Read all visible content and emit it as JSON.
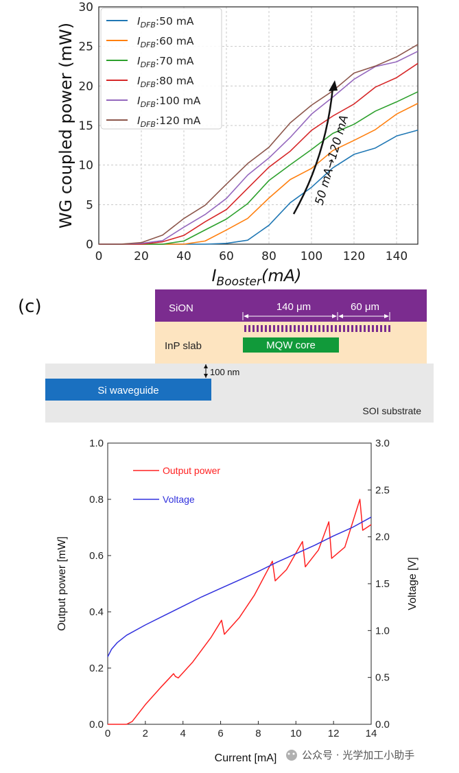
{
  "chart_data": [
    {
      "type": "line",
      "ylabel": "WG coupled power (mW)",
      "xlabel_main": "I",
      "xlabel_sub": "Booster",
      "xlabel_unit": "(mA)",
      "xlim": [
        0,
        150
      ],
      "ylim": [
        0,
        30
      ],
      "xticks": [
        "0",
        "20",
        "40",
        "60",
        "80",
        "100",
        "120",
        "140"
      ],
      "yticks": [
        "0",
        "5",
        "10",
        "15",
        "20",
        "25",
        "30"
      ],
      "grid": true,
      "legend_position": "top-left",
      "annotation": "50 mA→120 mA",
      "x": [
        0,
        10,
        20,
        30,
        40,
        50,
        60,
        70,
        80,
        90,
        100,
        110,
        120,
        130,
        140,
        150
      ],
      "series": [
        {
          "name": "50 mA",
          "legend_main": "I",
          "legend_sub": "DFB",
          "legend_value": ":50 mA",
          "color": "#1f77b4",
          "values": [
            0,
            0,
            0,
            0,
            0,
            0,
            0.1,
            0.6,
            2.5,
            5.0,
            7.4,
            9.6,
            11.2,
            12.4,
            13.5,
            14.4
          ]
        },
        {
          "name": "60 mA",
          "legend_main": "I",
          "legend_sub": "DFB",
          "legend_value": ":60 mA",
          "color": "#ff7f0e",
          "values": [
            0,
            0,
            0,
            0,
            0,
            0.4,
            1.6,
            3.5,
            5.7,
            8.1,
            9.8,
            11.6,
            13.2,
            14.6,
            16.2,
            18.0
          ]
        },
        {
          "name": "70 mA",
          "legend_main": "I",
          "legend_sub": "DFB",
          "legend_value": ":70 mA",
          "color": "#2ca02c",
          "values": [
            0,
            0,
            0,
            0,
            0.4,
            1.6,
            3.2,
            5.3,
            7.8,
            10.2,
            12.0,
            13.8,
            15.4,
            16.7,
            17.9,
            19.5
          ]
        },
        {
          "name": "80 mA",
          "legend_main": "I",
          "legend_sub": "DFB",
          "legend_value": ":80 mA",
          "color": "#d62728",
          "values": [
            0,
            0,
            0,
            0.3,
            1.2,
            2.6,
            4.6,
            7.0,
            9.6,
            12.0,
            14.2,
            16.2,
            17.9,
            19.6,
            21.2,
            22.9
          ]
        },
        {
          "name": "100 mA",
          "legend_main": "I",
          "legend_sub": "DFB",
          "legend_value": ":100 mA",
          "color": "#9467bd",
          "values": [
            0,
            0,
            0.1,
            0.7,
            2.0,
            3.7,
            6.0,
            8.5,
            11.0,
            13.6,
            16.2,
            18.8,
            20.8,
            22.3,
            23.3,
            24.2
          ]
        },
        {
          "name": "120 mA",
          "legend_main": "I",
          "legend_sub": "DFB",
          "legend_value": ":120 mA",
          "color": "#8c564b",
          "values": [
            0,
            0,
            0.2,
            1.3,
            3.0,
            5.1,
            7.6,
            10.0,
            12.5,
            15.2,
            17.5,
            19.6,
            21.4,
            22.6,
            23.8,
            25.0
          ]
        }
      ]
    },
    {
      "type": "line",
      "xlabel": "Current [mA]",
      "ylabel_left": "Output power [mW]",
      "ylabel_right": "Voltage [V]",
      "xlim": [
        0,
        14
      ],
      "ylim_left": [
        0,
        1.0
      ],
      "ylim_right": [
        0,
        3.0
      ],
      "xticks": [
        "0",
        "2",
        "4",
        "6",
        "8",
        "10",
        "12",
        "14"
      ],
      "yticks_left": [
        "0.0",
        "0.2",
        "0.4",
        "0.6",
        "0.8",
        "1.0"
      ],
      "yticks_right": [
        "0.0",
        "0.5",
        "1.0",
        "1.5",
        "2.0",
        "2.5",
        "3.0"
      ],
      "legend_position": "top-left",
      "series": [
        {
          "name": "Output power",
          "axis": "left",
          "color": "#ff2020",
          "x": [
            0,
            1.0,
            1.3,
            2.0,
            2.8,
            3.5,
            3.6,
            3.75,
            4.5,
            5.5,
            6.05,
            6.2,
            7.0,
            7.8,
            8.75,
            8.9,
            9.5,
            10.35,
            10.5,
            11.2,
            11.75,
            11.9,
            12.6,
            13.4,
            13.55,
            14.0
          ],
          "values": [
            0,
            0,
            0.01,
            0.07,
            0.13,
            0.18,
            0.17,
            0.165,
            0.22,
            0.31,
            0.37,
            0.32,
            0.38,
            0.46,
            0.58,
            0.51,
            0.55,
            0.65,
            0.56,
            0.62,
            0.72,
            0.59,
            0.63,
            0.8,
            0.69,
            0.71
          ]
        },
        {
          "name": "Voltage",
          "axis": "right",
          "color": "#3030dd",
          "x": [
            0,
            0.2,
            0.5,
            1,
            2,
            3,
            4,
            5,
            6,
            7,
            8,
            9,
            10,
            11,
            12,
            13,
            14
          ],
          "values": [
            0.72,
            0.8,
            0.87,
            0.95,
            1.06,
            1.16,
            1.26,
            1.36,
            1.45,
            1.54,
            1.63,
            1.73,
            1.82,
            1.91,
            2.01,
            2.1,
            2.21
          ]
        }
      ]
    }
  ],
  "diagram": {
    "panel_label": "(c)",
    "sion_label": "SiON",
    "dim_140": "140 μm",
    "dim_60": "60 μm",
    "inp_label": "InP slab",
    "mqw_label": "MQW core",
    "gap_label": "100 nm",
    "si_label": "Si waveguide",
    "soi_label": "SOI substrate",
    "colors": {
      "sion": "#7b2c8f",
      "inp": "#fde4c0",
      "mqw": "#119a3a",
      "si": "#1a70c0",
      "soi": "#e8e8e8"
    }
  },
  "watermark": "公众号 · 光学加工小助手"
}
